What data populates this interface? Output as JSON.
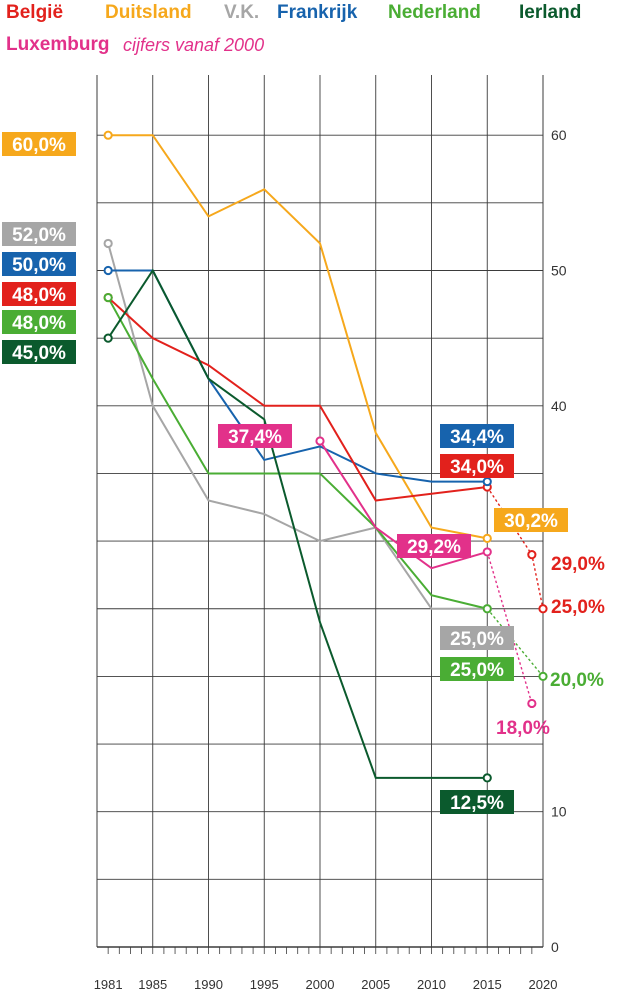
{
  "chart_data": {
    "type": "line",
    "title": "",
    "legend_note": "cijfers vanaf 2000",
    "xlabel": "",
    "ylabel": "",
    "xlim": [
      1980,
      2020
    ],
    "ylim": [
      0,
      64
    ],
    "x_ticks": [
      1981,
      1985,
      1990,
      1995,
      2000,
      2005,
      2010,
      2015,
      2020
    ],
    "y_ticks": [
      0,
      10,
      40,
      50,
      60
    ],
    "grid": true,
    "series": [
      {
        "name": "België",
        "color": "#e2211c",
        "points": [
          [
            1981,
            48.0
          ],
          [
            1985,
            45.0
          ],
          [
            1990,
            43.0
          ],
          [
            1995,
            40.0
          ],
          [
            2000,
            40.0
          ],
          [
            2005,
            33.0
          ],
          [
            2015,
            34.0
          ]
        ],
        "projection": [
          [
            2015,
            34.0
          ],
          [
            2019,
            29.0
          ],
          [
            2020,
            25.0
          ]
        ],
        "labels": [
          "48,0%",
          "34,0%",
          "29,0%",
          "25,0%"
        ]
      },
      {
        "name": "Duitsland",
        "color": "#f6a81c",
        "points": [
          [
            1981,
            60.0
          ],
          [
            1985,
            60.0
          ],
          [
            1990,
            54.0
          ],
          [
            1995,
            56.0
          ],
          [
            2000,
            52.0
          ],
          [
            2005,
            38.0
          ],
          [
            2010,
            31.0
          ],
          [
            2015,
            30.2
          ]
        ],
        "labels": [
          "60,0%",
          "30,2%"
        ]
      },
      {
        "name": "V.K.",
        "color": "#a6a6a6",
        "points": [
          [
            1981,
            52.0
          ],
          [
            1985,
            40.0
          ],
          [
            1990,
            33.0
          ],
          [
            1995,
            32.0
          ],
          [
            2000,
            30.0
          ],
          [
            2005,
            31.0
          ],
          [
            2010,
            25.0
          ],
          [
            2015,
            25.0
          ]
        ],
        "labels": [
          "52,0%",
          "25,0%"
        ]
      },
      {
        "name": "Frankrijk",
        "color": "#1763ad",
        "points": [
          [
            1981,
            50.0
          ],
          [
            1985,
            50.0
          ],
          [
            1990,
            42.0
          ],
          [
            1995,
            36.0
          ],
          [
            2000,
            37.0
          ],
          [
            2005,
            35.0
          ],
          [
            2010,
            34.4
          ],
          [
            2015,
            34.4
          ]
        ],
        "labels": [
          "50,0%",
          "34,4%"
        ]
      },
      {
        "name": "Nederland",
        "color": "#4aad34",
        "points": [
          [
            1981,
            48.0
          ],
          [
            1985,
            42.0
          ],
          [
            1990,
            35.0
          ],
          [
            1995,
            35.0
          ],
          [
            2000,
            35.0
          ],
          [
            2005,
            31.0
          ],
          [
            2010,
            26.0
          ],
          [
            2015,
            25.0
          ]
        ],
        "projection": [
          [
            2015,
            25.0
          ],
          [
            2020,
            20.0
          ]
        ],
        "labels": [
          "48,0%",
          "25,0%",
          "20,0%"
        ]
      },
      {
        "name": "Ierland",
        "color": "#0b5a2d",
        "points": [
          [
            1981,
            45.0
          ],
          [
            1985,
            50.0
          ],
          [
            1990,
            42.0
          ],
          [
            1995,
            39.0
          ],
          [
            2000,
            24.0
          ],
          [
            2005,
            12.5
          ],
          [
            2015,
            12.5
          ]
        ],
        "labels": [
          "45,0%",
          "12,5%"
        ]
      },
      {
        "name": "Luxemburg",
        "color": "#e2318a",
        "points": [
          [
            2000,
            37.4
          ],
          [
            2005,
            31.0
          ],
          [
            2010,
            28.0
          ],
          [
            2015,
            29.2
          ]
        ],
        "projection": [
          [
            2015,
            29.2
          ],
          [
            2019,
            18.0
          ]
        ],
        "labels": [
          "37,4%",
          "29,2%",
          "18,0%"
        ]
      }
    ]
  }
}
